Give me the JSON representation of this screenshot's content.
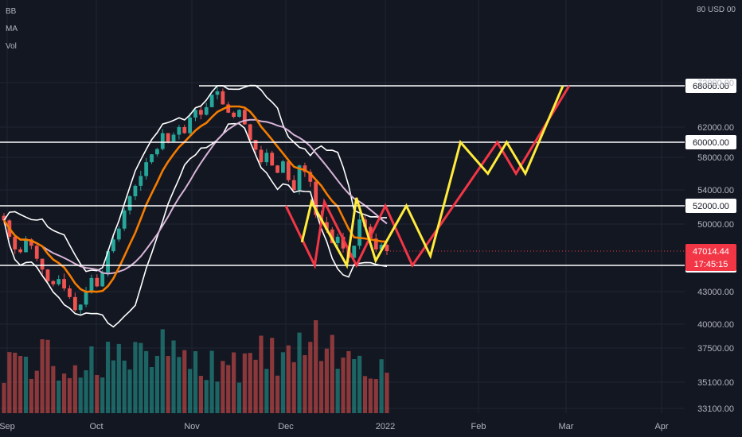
{
  "legend": {
    "bb": "BB",
    "ma": "MA",
    "vol": "Vol"
  },
  "top_currency": "80 USD 00",
  "colors": {
    "background": "#131722",
    "grid": "#1f2431",
    "axis_text": "#b2b5be",
    "candle_up": "#26a69a",
    "candle_down": "#ef5350",
    "bb": "#ffffff",
    "ma_orange": "#f57c00",
    "ma_pink": "#d8b4d8",
    "proj_yellow": "#ffeb3b",
    "proj_red": "#f23645",
    "price_tag": "#f23645"
  },
  "chart_data": {
    "type": "line",
    "title": "",
    "price_axis": {
      "ticks": [
        72000,
        62000,
        58000,
        54000,
        50000,
        43000,
        40000,
        37500,
        35100,
        33100
      ],
      "tick_labels": [
        "72000.00",
        "62000.00",
        "58000.00",
        "54000.00",
        "50000.00",
        "43000.00",
        "40000.00",
        "37500.00",
        "35100.00",
        "33100.00"
      ],
      "scale": "nonlinear"
    },
    "time_axis": {
      "labels": [
        "Sep",
        "Oct",
        "Nov",
        "Dec",
        "2022",
        "Feb",
        "Mar",
        "Apr"
      ]
    },
    "horizontal_levels": [
      {
        "label": "68000.00",
        "value": 68000
      },
      {
        "label": "60000.00",
        "value": 60000
      },
      {
        "label": "52000.00",
        "value": 52000
      },
      {
        "label": "45500.00",
        "value": 45500
      }
    ],
    "last_price": {
      "price": "47014.44",
      "countdown": "17:45:15"
    },
    "projection_yellow": [
      [
        "2021-12-06",
        48000
      ],
      [
        "2021-12-09",
        52500
      ],
      [
        "2021-12-20",
        45500
      ],
      [
        "2021-12-23",
        53000
      ],
      [
        "2021-12-29",
        46000
      ],
      [
        "2022-01-08",
        52000
      ],
      [
        "2022-01-16",
        46500
      ],
      [
        "2022-01-26",
        60000
      ],
      [
        "2022-02-04",
        56000
      ],
      [
        "2022-02-10",
        60000
      ],
      [
        "2022-02-16",
        56000
      ],
      [
        "2022-02-28",
        68000
      ]
    ],
    "projection_red": [
      [
        "2021-12-01",
        52000
      ],
      [
        "2021-12-10",
        45500
      ],
      [
        "2021-12-13",
        52500
      ],
      [
        "2021-12-23",
        45500
      ],
      [
        "2022-01-01",
        52000
      ],
      [
        "2022-01-10",
        45500
      ],
      [
        "2022-02-07",
        60000
      ],
      [
        "2022-02-13",
        56000
      ],
      [
        "2022-03-02",
        68000
      ]
    ],
    "volume_scale": "relative"
  }
}
